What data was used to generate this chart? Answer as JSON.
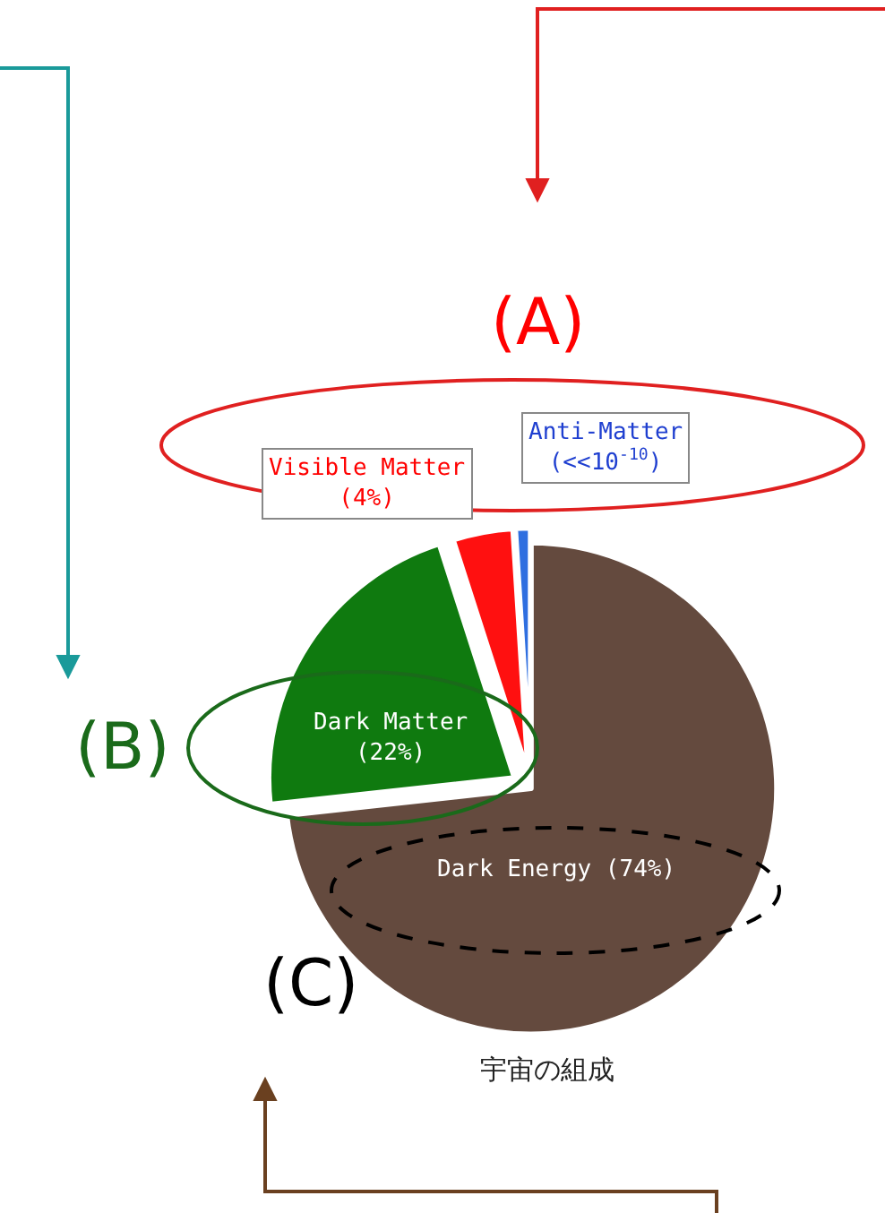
{
  "chart_data": {
    "type": "pie",
    "title": "宇宙の組成",
    "categories": [
      "Dark Energy",
      "Dark Matter",
      "Visible Matter",
      "Anti-Matter"
    ],
    "values": [
      74,
      22,
      4,
      1
    ],
    "value_labels": [
      "(74%)",
      "(22%)",
      "(4%)",
      "(<<10$^{-10}$)"
    ],
    "colors": [
      "#644a3e",
      "#0f7a0f",
      "#ff1010",
      "#2f6fe0"
    ],
    "legend": false,
    "annotations": [
      "(A)",
      "(B)",
      "(C)"
    ]
  }
}
